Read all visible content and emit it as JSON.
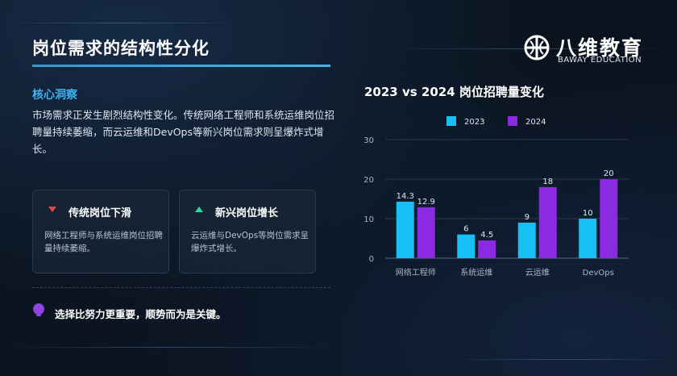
{
  "slide": {
    "title": "岗位需求的结构性分化",
    "logo": {
      "cn": "八维教育",
      "en": "BAWAY EDUCATION"
    },
    "insight": {
      "heading": "核心洞察",
      "text": "市场需求正发生剧烈结构性变化。传统网络工程师和系统运维岗位招聘量持续萎缩，而云运维和DevOps等新兴岗位需求则呈爆炸式增长。"
    },
    "cards": [
      {
        "title": "传统岗位下滑",
        "text": "网络工程师与系统运维岗位招聘量持续萎缩。",
        "icon": "triangle-down-icon",
        "color": "#e04848"
      },
      {
        "title": "新兴岗位增长",
        "text": "云运维与DevOps等岗位需求呈爆炸式增长。",
        "icon": "triangle-up-icon",
        "color": "#2fd6a8"
      }
    ],
    "footer": "选择比努力更重要，顺势而为是关键。",
    "colors": {
      "accent": "#3fb3f0",
      "series2023": "#16c0f5",
      "series2024": "#8a2be2"
    }
  },
  "chart_data": {
    "type": "bar",
    "title": "2023 vs 2024 岗位招聘量变化",
    "categories": [
      "网络工程师",
      "系统运维",
      "云运维",
      "DevOps"
    ],
    "series": [
      {
        "name": "2023",
        "values": [
          14.3,
          6,
          9,
          10
        ]
      },
      {
        "name": "2024",
        "values": [
          12.9,
          4.5,
          18,
          20
        ]
      }
    ],
    "ylim": [
      0,
      30
    ],
    "yticks": [
      "0",
      "10",
      "20",
      "30"
    ],
    "data_labels": {
      "2023": [
        "14.3",
        "6",
        "9",
        "10"
      ],
      "2024": [
        "12.9",
        "4.5",
        "18",
        "20"
      ]
    },
    "legend": "top",
    "grid": true
  }
}
